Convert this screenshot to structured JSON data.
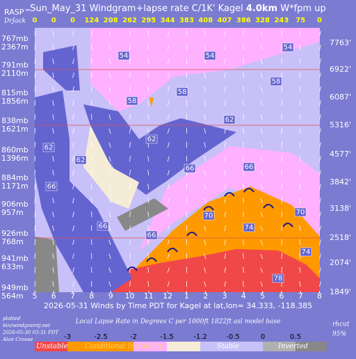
{
  "chart_data": {
    "type": "windgram",
    "brand": "RASP™",
    "author": "DrJack",
    "title": "Sun_May_31 Windgram+lapse rate C/1K'  Kagel ",
    "title_bold": "4.0km",
    "title_tail": "  W*fpm up",
    "categories": [
      "5",
      "6",
      "7",
      "8",
      "9",
      "10",
      "11",
      "12",
      "1",
      "2",
      "3",
      "4",
      "5",
      "6",
      "7",
      "8"
    ],
    "wstar": [
      0,
      0,
      0,
      124,
      208,
      262,
      295,
      344,
      383,
      408,
      407,
      386,
      328,
      243,
      75,
      0
    ],
    "levels_mb": [
      "767mb",
      "791mb",
      "815mb",
      "838mb",
      "860mb",
      "884mb",
      "906mb",
      "926mb",
      "941mb",
      "949mb"
    ],
    "levels_m": [
      "2367m",
      "2110m",
      "1856m",
      "1621m",
      "1396m",
      "1171m",
      "957m",
      "768m",
      "633m",
      "564m"
    ],
    "levels_ft": [
      "7763'",
      "6922'",
      "6087'",
      "5316'",
      "4577'",
      "3842'",
      "3138'",
      "2518'",
      "2074'",
      "1849'"
    ],
    "contour_labels": [
      54,
      54,
      54,
      58,
      58,
      58,
      62,
      62,
      62,
      62,
      66,
      66,
      66,
      66,
      66,
      70,
      70,
      74,
      74,
      78
    ],
    "caption": "2026-05-31 Winds by Time PDT for Kagel at lat,lon= 34.333, -118.385",
    "legend_title": "Local Lapse Rate in Degrees C per 1000ft   1822ft asl model base",
    "legend_ticks": [
      "-3",
      "-2.5",
      "-2",
      "-1.5",
      "-1.2",
      "-0.5",
      "0",
      "0.5"
    ],
    "legend_classes": [
      "Unstable",
      "Conditional Instability",
      "Stable",
      "Inverted"
    ],
    "plotted": [
      "plotted",
      "bin/windgramtj.net",
      "2026-05-30 03:31 PDT",
      "Alan Crouse"
    ],
    "rh": [
      "rhcut",
      "95%"
    ]
  }
}
